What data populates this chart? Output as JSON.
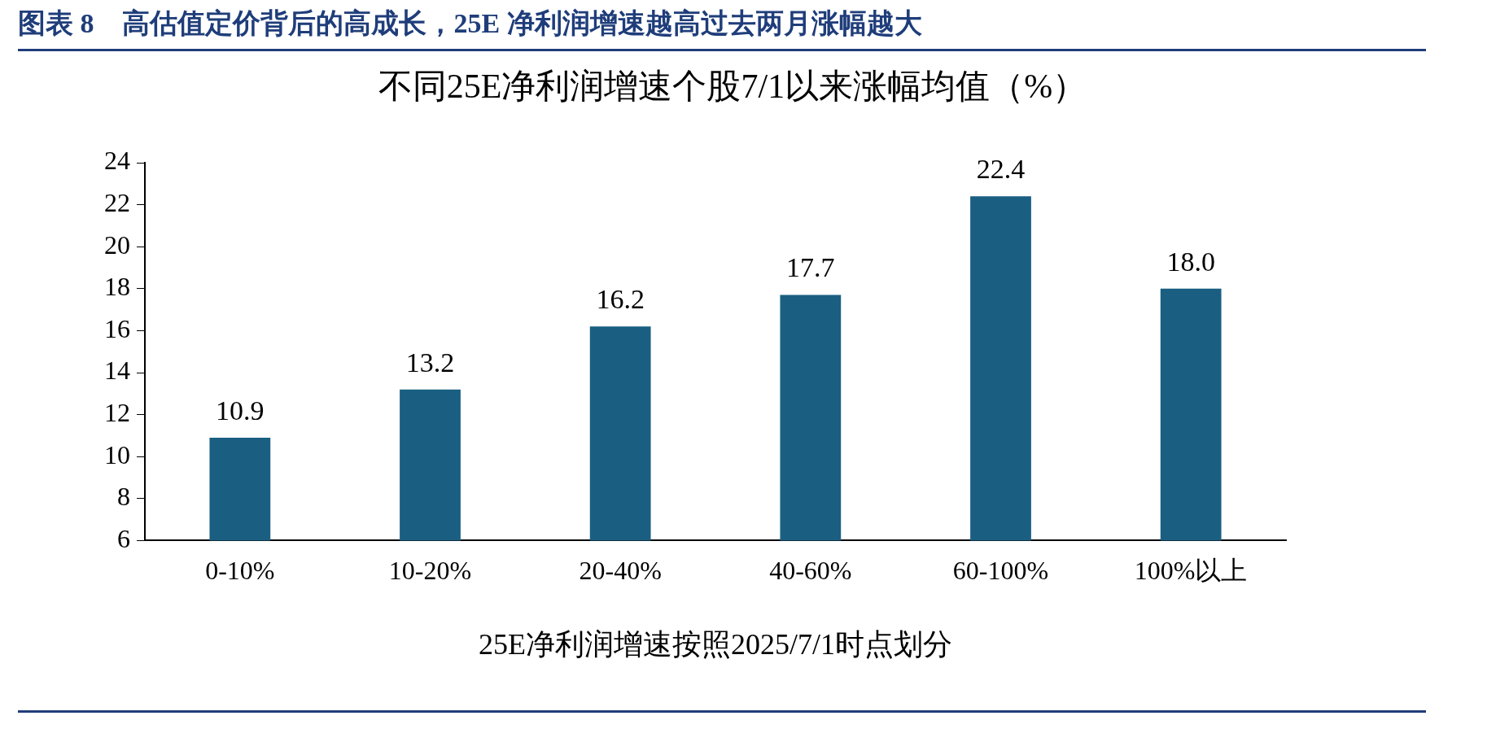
{
  "chart_data": {
    "type": "bar",
    "title": "图表 8　高估值定价背后的高成长，25E 净利润增速越高过去两月涨幅越大",
    "subtitle": "不同25E净利润增速个股7/1以来涨幅均值（%）",
    "xlabel": "25E净利润增速按照2025/7/1时点划分",
    "categories": [
      "0-10%",
      "10-20%",
      "20-40%",
      "40-60%",
      "60-100%",
      "100%以上"
    ],
    "values": [
      10.9,
      13.2,
      16.2,
      17.7,
      22.4,
      18.0
    ],
    "value_labels": [
      "10.9",
      "13.2",
      "16.2",
      "17.7",
      "22.4",
      "18.0"
    ],
    "color": "#1a5f82",
    "ylim": [
      6,
      24
    ],
    "yticks": [
      6,
      8,
      10,
      12,
      14,
      16,
      18,
      20,
      22,
      24
    ],
    "grid": false,
    "legend": false
  }
}
